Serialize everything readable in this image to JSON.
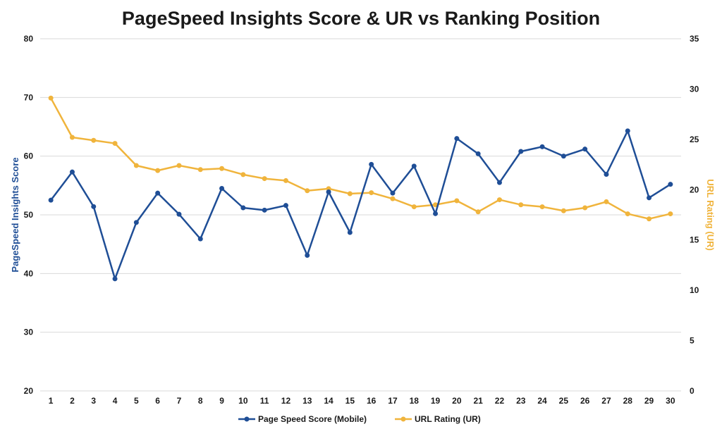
{
  "chart_data": {
    "type": "line",
    "title": "PageSpeed Insights Score & UR vs Ranking Position",
    "xlabel": "",
    "ylabel": "PageSpeed Insights Score",
    "y2label": "URL Rating (UR)",
    "x": [
      1,
      2,
      3,
      4,
      5,
      6,
      7,
      8,
      9,
      10,
      11,
      12,
      13,
      14,
      15,
      16,
      17,
      18,
      19,
      20,
      21,
      22,
      23,
      24,
      25,
      26,
      27,
      28,
      29,
      30
    ],
    "ylim": [
      20,
      80
    ],
    "yticks": [
      20,
      30,
      40,
      50,
      60,
      70,
      80
    ],
    "y2lim": [
      0,
      35
    ],
    "y2ticks": [
      0,
      5,
      10,
      15,
      20,
      25,
      30,
      35
    ],
    "grid": true,
    "legend_position": "bottom",
    "series": [
      {
        "name": "Page Speed Score (Mobile)",
        "axis": "left",
        "color": "#1f4e96",
        "values": [
          52.5,
          57.3,
          51.4,
          39.1,
          48.7,
          53.7,
          50.1,
          45.9,
          54.5,
          51.2,
          50.8,
          51.6,
          43.1,
          53.9,
          47.0,
          58.6,
          53.7,
          58.3,
          50.2,
          63.0,
          60.4,
          55.5,
          60.8,
          61.6,
          60.0,
          61.2,
          56.9,
          64.3,
          52.9,
          55.2
        ]
      },
      {
        "name": "URL Rating (UR)",
        "axis": "right",
        "color": "#f0b43c",
        "values": [
          29.1,
          25.2,
          24.9,
          24.6,
          22.4,
          21.9,
          22.4,
          22.0,
          22.1,
          21.5,
          21.1,
          20.9,
          19.9,
          20.1,
          19.6,
          19.7,
          19.1,
          18.3,
          18.5,
          18.9,
          17.8,
          19.0,
          18.5,
          18.3,
          17.9,
          18.2,
          18.8,
          17.6,
          17.1,
          17.6
        ]
      }
    ]
  }
}
